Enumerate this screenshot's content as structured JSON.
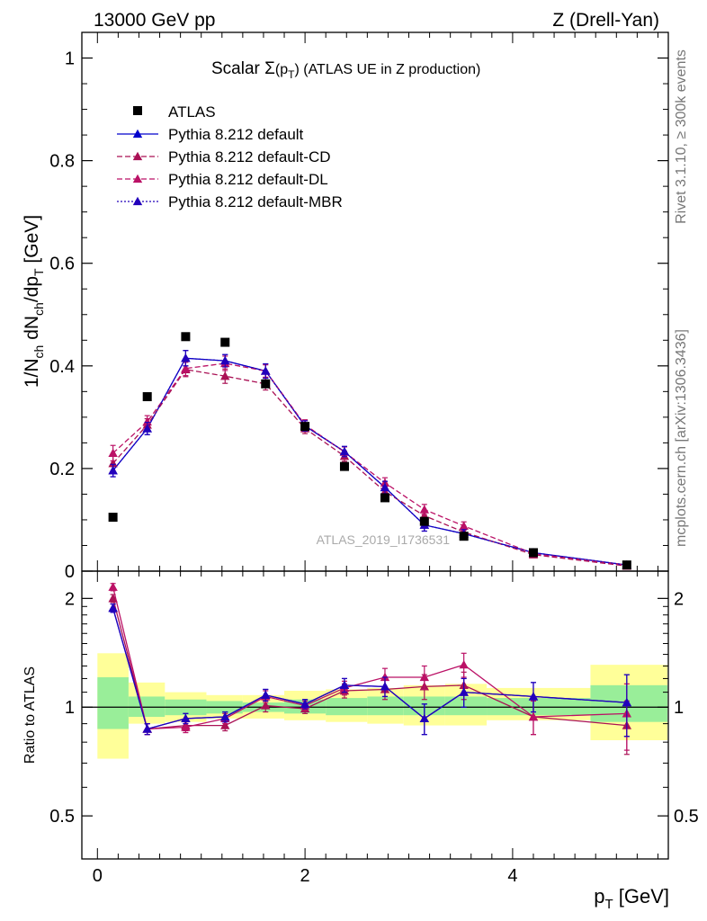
{
  "header": {
    "left": "13000 GeV pp",
    "right": "Z (Drell-Yan)"
  },
  "side_labels": {
    "rivet": "Rivet 3.1.10, ≥ 300k events",
    "mcplots": "mcplots.cern.ch [arXiv:1306.3436]"
  },
  "colors": {
    "data": "#000000",
    "default": "#0000cc",
    "cd": "#aa1155",
    "dl": "#bb1166",
    "mbr": "#2200bb",
    "band_inner": "#99ee99",
    "band_outer": "#ffff99"
  },
  "chart_data": [
    {
      "type": "scatter",
      "title_prefix": "Scalar ",
      "title_sigma": "Σ",
      "title_arg": "(p",
      "title_arg_sub": "T",
      "title_arg_close": ")",
      "title_suffix": " (ATLAS UE in Z production)",
      "ylabel": "1/N_ch dN_ch/dp_T [GeV]",
      "ylabel_parts": {
        "a": "1/N",
        "a_sub": "ch",
        "b": " dN",
        "b_sub": "ch",
        "c": "/dp",
        "c_sub": "T",
        "d": " [GeV]"
      },
      "watermark": "ATLAS_2019_I1736531",
      "xlim": [
        -0.15,
        5.5
      ],
      "ylim": [
        0,
        1.05
      ],
      "yticks": [
        0,
        0.2,
        0.4,
        0.6,
        0.8,
        1
      ],
      "ytick_labels": [
        "0",
        "0.2",
        "0.4",
        "0.6",
        "0.8",
        "1"
      ],
      "x": [
        0.15,
        0.48,
        0.85,
        1.23,
        1.62,
        2.0,
        2.38,
        2.77,
        3.15,
        3.53,
        4.2,
        5.1
      ],
      "data": {
        "name": "ATLAS",
        "values": [
          0.105,
          0.34,
          0.457,
          0.446,
          0.365,
          0.282,
          0.204,
          0.143,
          0.097,
          0.068,
          0.036,
          0.012
        ]
      },
      "series": [
        {
          "key": "default",
          "name": "Pythia 8.212 default",
          "dash": "",
          "values": [
            0.196,
            0.278,
            0.415,
            0.41,
            0.39,
            0.283,
            0.233,
            0.163,
            0.09,
            0.073,
            0.036,
            0.012
          ],
          "err": [
            0.012,
            0.012,
            0.015,
            0.012,
            0.014,
            0.01,
            0.01,
            0.012,
            0.012,
            0.008,
            0.004,
            0.003
          ]
        },
        {
          "key": "cd",
          "name": "Pythia 8.212 default-CD",
          "dash": "6,3",
          "values": [
            0.21,
            0.285,
            0.393,
            0.38,
            0.365,
            0.278,
            0.224,
            0.155,
            0.108,
            0.076,
            0.032,
            0.01
          ],
          "err": [
            0.014,
            0.012,
            0.014,
            0.014,
            0.012,
            0.01,
            0.01,
            0.01,
            0.01,
            0.008,
            0.004,
            0.003
          ]
        },
        {
          "key": "dl",
          "name": "Pythia 8.212 default-DL",
          "dash": "6,3",
          "values": [
            0.23,
            0.291,
            0.395,
            0.405,
            0.39,
            0.285,
            0.232,
            0.172,
            0.12,
            0.088,
            0.034,
            0.012
          ],
          "err": [
            0.015,
            0.012,
            0.014,
            0.014,
            0.012,
            0.01,
            0.01,
            0.01,
            0.01,
            0.008,
            0.004,
            0.003
          ]
        },
        {
          "key": "mbr",
          "name": "Pythia 8.212 default-MBR",
          "dash": "2,2",
          "values": [
            0.196,
            0.278,
            0.415,
            0.41,
            0.39,
            0.283,
            0.233,
            0.163,
            0.09,
            0.073,
            0.036,
            0.012
          ],
          "err": [
            0.012,
            0.012,
            0.015,
            0.012,
            0.014,
            0.01,
            0.01,
            0.012,
            0.012,
            0.008,
            0.004,
            0.003
          ]
        }
      ],
      "legend_position": "top-left"
    },
    {
      "type": "scatter",
      "ylabel": "Ratio to ATLAS",
      "xlabel": "p_T [GeV]",
      "xlabel_parts": {
        "a": "p",
        "a_sub": "T",
        "b": " [GeV]"
      },
      "xlim": [
        -0.15,
        5.5
      ],
      "ylim": [
        0.38,
        2.38
      ],
      "yticks": [
        0.5,
        1,
        2
      ],
      "ytick_labels": [
        "0.5",
        "1",
        "2"
      ],
      "xticks": [
        0,
        2,
        4
      ],
      "xtick_labels": [
        "0",
        "2",
        "4"
      ],
      "bins": [
        {
          "lo": 0.0,
          "hi": 0.3,
          "inner": [
            0.87,
            1.21
          ],
          "outer": [
            0.72,
            1.41
          ]
        },
        {
          "lo": 0.3,
          "hi": 0.65,
          "inner": [
            0.94,
            1.07
          ],
          "outer": [
            0.9,
            1.17
          ]
        },
        {
          "lo": 0.65,
          "hi": 1.05,
          "inner": [
            0.95,
            1.05
          ],
          "outer": [
            0.91,
            1.1
          ]
        },
        {
          "lo": 1.05,
          "hi": 1.4,
          "inner": [
            0.96,
            1.04
          ],
          "outer": [
            0.93,
            1.08
          ]
        },
        {
          "lo": 1.4,
          "hi": 1.8,
          "inner": [
            0.97,
            1.03
          ],
          "outer": [
            0.93,
            1.08
          ]
        },
        {
          "lo": 1.8,
          "hi": 2.2,
          "inner": [
            0.96,
            1.05
          ],
          "outer": [
            0.92,
            1.11
          ]
        },
        {
          "lo": 2.2,
          "hi": 2.6,
          "inner": [
            0.95,
            1.06
          ],
          "outer": [
            0.91,
            1.12
          ]
        },
        {
          "lo": 2.6,
          "hi": 2.95,
          "inner": [
            0.95,
            1.07
          ],
          "outer": [
            0.9,
            1.13
          ]
        },
        {
          "lo": 2.95,
          "hi": 3.35,
          "inner": [
            0.95,
            1.07
          ],
          "outer": [
            0.89,
            1.15
          ]
        },
        {
          "lo": 3.35,
          "hi": 3.75,
          "inner": [
            0.95,
            1.07
          ],
          "outer": [
            0.89,
            1.16
          ]
        },
        {
          "lo": 3.75,
          "hi": 4.75,
          "inner": [
            0.95,
            1.06
          ],
          "outer": [
            0.92,
            1.13
          ]
        },
        {
          "lo": 4.75,
          "hi": 5.5,
          "inner": [
            0.91,
            1.15
          ],
          "outer": [
            0.81,
            1.31
          ]
        }
      ],
      "x": [
        0.15,
        0.48,
        0.85,
        1.23,
        1.62,
        2.0,
        2.38,
        2.77,
        3.15,
        3.53,
        4.2,
        5.1
      ],
      "series": [
        {
          "key": "default",
          "values": [
            1.88,
            0.87,
            0.93,
            0.94,
            1.08,
            1.02,
            1.15,
            1.14,
            0.93,
            1.1,
            1.07,
            1.03
          ],
          "err": [
            0.05,
            0.03,
            0.03,
            0.03,
            0.04,
            0.03,
            0.05,
            0.07,
            0.09,
            0.1,
            0.1,
            0.2
          ]
        },
        {
          "key": "cd",
          "values": [
            2.0,
            0.87,
            0.89,
            0.89,
            1.01,
            0.99,
            1.11,
            1.12,
            1.14,
            1.15,
            0.94,
            0.89
          ],
          "err": [
            0.05,
            0.03,
            0.03,
            0.03,
            0.04,
            0.03,
            0.05,
            0.07,
            0.09,
            0.1,
            0.1,
            0.15
          ]
        },
        {
          "key": "dl",
          "values": [
            2.15,
            0.87,
            0.88,
            0.93,
            1.07,
            1.01,
            1.13,
            1.21,
            1.21,
            1.31,
            0.94,
            0.96
          ],
          "err": [
            0.05,
            0.03,
            0.03,
            0.03,
            0.04,
            0.03,
            0.05,
            0.07,
            0.09,
            0.1,
            0.1,
            0.2
          ]
        },
        {
          "key": "mbr",
          "values": [
            1.88,
            0.87,
            0.93,
            0.94,
            1.08,
            1.02,
            1.15,
            1.14,
            0.93,
            1.1,
            1.07,
            1.03
          ],
          "err": [
            0.05,
            0.03,
            0.03,
            0.03,
            0.04,
            0.03,
            0.05,
            0.07,
            0.09,
            0.1,
            0.1,
            0.2
          ]
        }
      ]
    }
  ]
}
